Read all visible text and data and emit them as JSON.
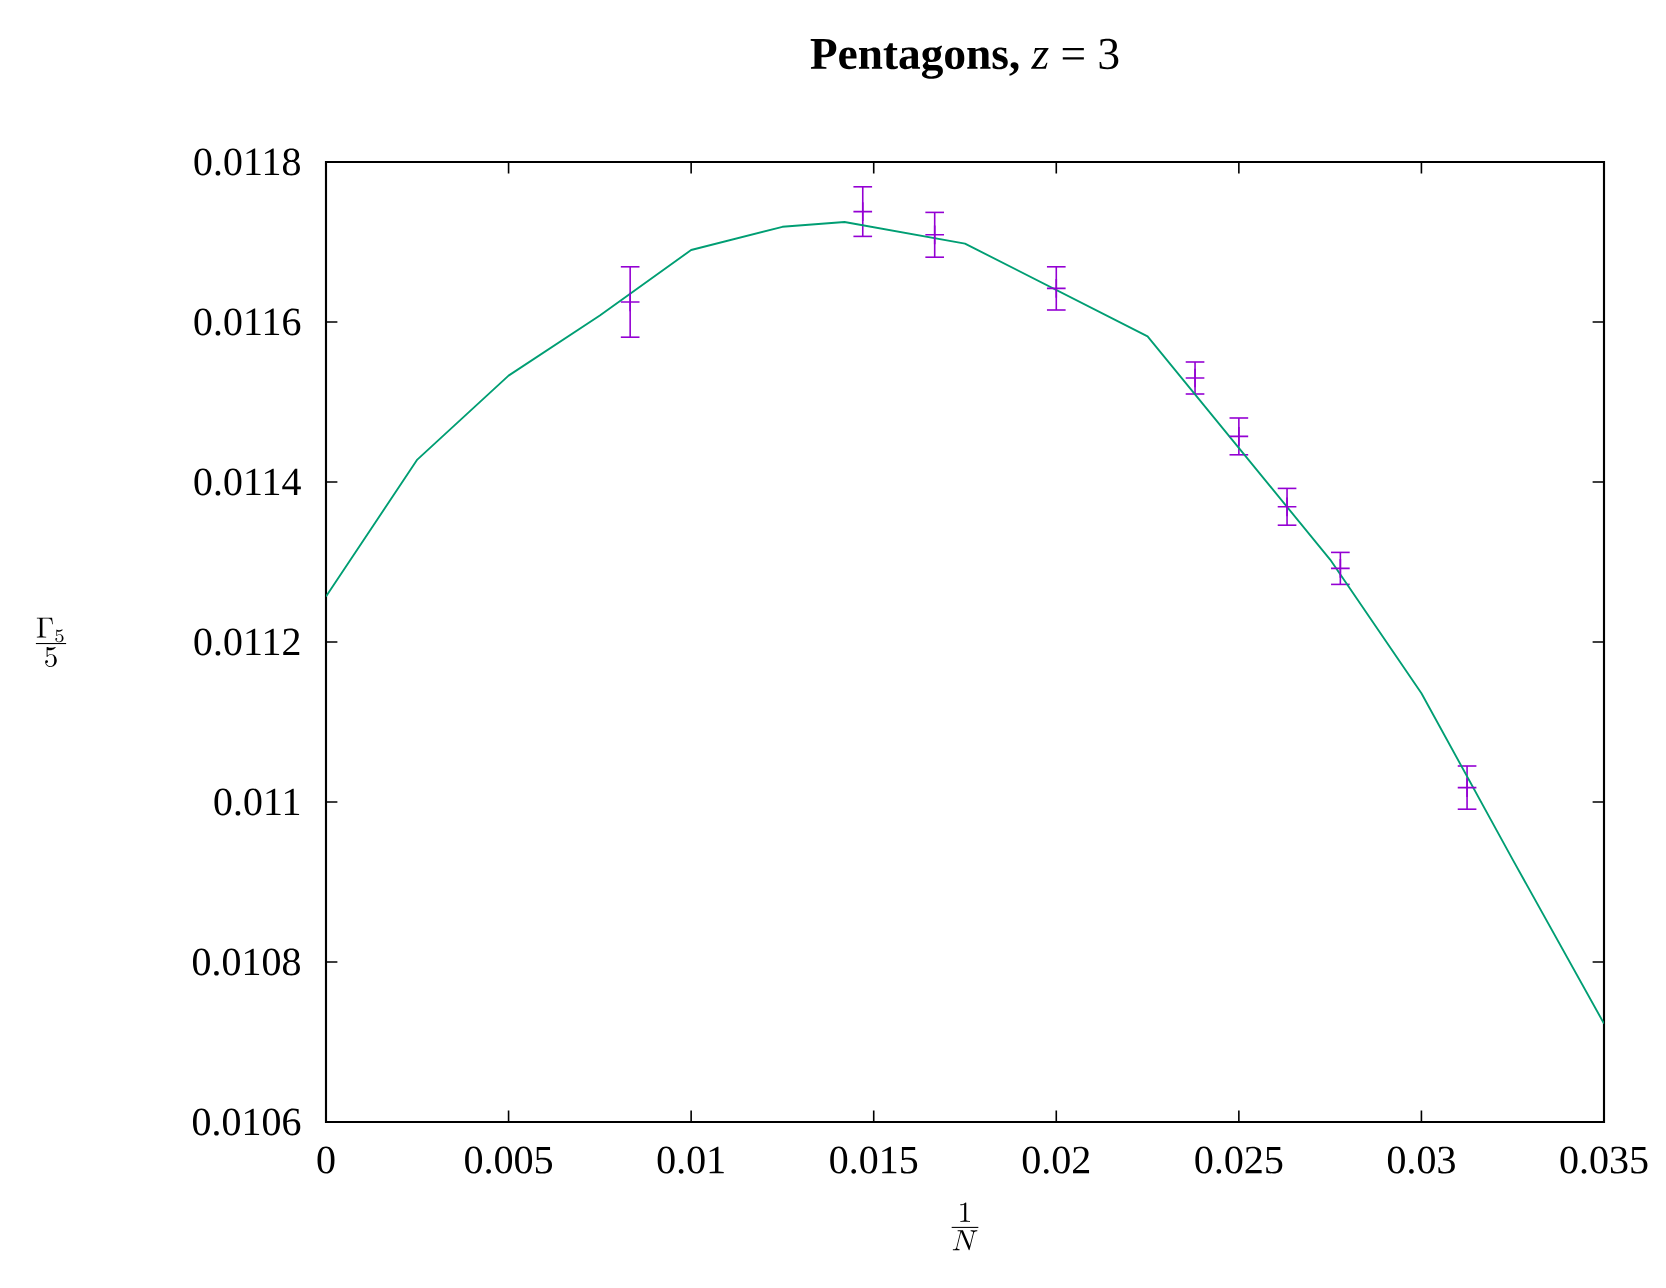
{
  "chart_data": {
    "type": "scatter",
    "title": "**Pentagons,** *z* = 3",
    "xlabel": "\\frac{1}{N}",
    "ylabel": "\\frac{\\Gamma_5}{5}",
    "xlim": [
      0,
      0.035
    ],
    "ylim": [
      0.0106,
      0.0118
    ],
    "xticks": [
      0,
      0.005,
      0.01,
      0.015,
      0.02,
      0.025,
      0.03,
      0.035
    ],
    "yticks": [
      0.0106,
      0.0108,
      0.011,
      0.0112,
      0.0114,
      0.0116,
      0.0118
    ],
    "series": [
      {
        "color": "#9400d3",
        "marker": "cross",
        "x": [
          0.00833,
          0.0147,
          0.01667,
          0.02,
          0.0238,
          0.025,
          0.02632,
          0.02778,
          0.03125
        ],
        "values": [
          0.011625,
          0.011738,
          0.011709,
          0.011642,
          0.01153,
          0.011457,
          0.011369,
          0.011292,
          0.011018
        ],
        "errors": [
          4.4e-05,
          3.1e-05,
          2.8e-05,
          2.7e-05,
          2e-05,
          2.3e-05,
          2.3e-05,
          2e-05,
          2.7e-05
        ]
      },
      {
        "type": "line",
        "color": "#009e73",
        "marker": "none",
        "x": [
          0,
          0.0025,
          0.005,
          0.0075,
          0.01,
          0.0125,
          0.0142,
          0.0175,
          0.02,
          0.0225,
          0.0275,
          0.03,
          0.0325,
          0.035
        ],
        "values": [
          0.011257,
          0.011428,
          0.011533,
          0.011608,
          0.01169,
          0.011719,
          0.011725,
          0.011698,
          0.01164,
          0.011582,
          0.011303,
          0.011136,
          0.010928,
          0.010723
        ]
      }
    ]
  }
}
